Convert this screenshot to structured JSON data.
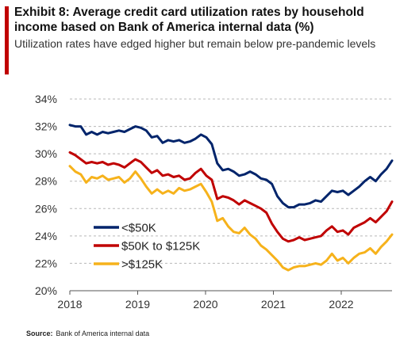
{
  "header": {
    "title": "Exhibit 8: Average credit card utilization rates by household income based on Bank of America internal data (%)",
    "subtitle": "Utilization rates have edged higher but remain below pre-pandemic levels",
    "accent_color": "#c00000"
  },
  "footer": {
    "source_label": "Source:",
    "source_text": "Bank of America internal data"
  },
  "chart_data": {
    "type": "line",
    "title": "Exhibit 8: Average credit card utilization rates by household income based on Bank of America internal data (%)",
    "x_start": "2018-01",
    "x_end": "2022-12",
    "frequency": "monthly",
    "xticks": [
      "2018",
      "2019",
      "2020",
      "2021",
      "2022"
    ],
    "ylim": [
      20,
      34
    ],
    "yticks": [
      "20%",
      "22%",
      "24%",
      "26%",
      "28%",
      "30%",
      "32%",
      "34%"
    ],
    "grid": "horizontal dashed",
    "legend_position": "lower-left",
    "series": [
      {
        "name": "<$50K",
        "color": "#00246b",
        "values": [
          32.1,
          32.0,
          32.0,
          31.4,
          31.6,
          31.4,
          31.6,
          31.5,
          31.6,
          31.7,
          31.6,
          31.8,
          32.0,
          31.9,
          31.7,
          31.2,
          31.3,
          30.8,
          31.0,
          30.9,
          31.0,
          30.8,
          30.9,
          31.1,
          31.4,
          31.2,
          30.7,
          29.3,
          28.8,
          28.9,
          28.7,
          28.4,
          28.5,
          28.7,
          28.5,
          28.2,
          28.1,
          27.8,
          26.9,
          26.4,
          26.1,
          26.1,
          26.3,
          26.3,
          26.4,
          26.6,
          26.5,
          26.9,
          27.3,
          27.2,
          27.3,
          27.0,
          27.3,
          27.6,
          28.0,
          28.3,
          28.0,
          28.5,
          28.9,
          29.5
        ]
      },
      {
        "name": "$50K to $125K",
        "color": "#c00000",
        "values": [
          30.1,
          29.9,
          29.6,
          29.3,
          29.4,
          29.3,
          29.4,
          29.2,
          29.3,
          29.2,
          29.0,
          29.3,
          29.6,
          29.4,
          29.0,
          28.6,
          28.8,
          28.4,
          28.5,
          28.3,
          28.4,
          28.1,
          28.2,
          28.6,
          28.9,
          28.4,
          28.1,
          26.7,
          26.9,
          26.8,
          26.6,
          26.3,
          26.6,
          26.4,
          26.2,
          26.0,
          25.7,
          24.9,
          24.3,
          23.8,
          23.6,
          23.7,
          23.9,
          23.7,
          23.8,
          23.9,
          24.0,
          24.4,
          24.7,
          24.3,
          24.4,
          24.1,
          24.6,
          24.8,
          25.0,
          25.3,
          25.0,
          25.4,
          25.8,
          26.5
        ]
      },
      {
        "name": ">$125K",
        "color": "#f6b21b",
        "values": [
          29.1,
          28.7,
          28.5,
          27.9,
          28.3,
          28.2,
          28.4,
          28.1,
          28.2,
          28.3,
          27.9,
          28.2,
          28.7,
          28.2,
          27.6,
          27.1,
          27.4,
          27.1,
          27.3,
          27.1,
          27.5,
          27.3,
          27.4,
          27.6,
          27.8,
          27.2,
          26.5,
          25.1,
          25.3,
          24.7,
          24.3,
          24.2,
          24.6,
          24.1,
          23.8,
          23.3,
          23.0,
          22.6,
          22.2,
          21.7,
          21.5,
          21.7,
          21.8,
          21.8,
          21.9,
          22.0,
          21.9,
          22.2,
          22.7,
          22.2,
          22.4,
          22.0,
          22.4,
          22.7,
          22.8,
          23.1,
          22.7,
          23.2,
          23.6,
          24.1
        ]
      }
    ]
  }
}
